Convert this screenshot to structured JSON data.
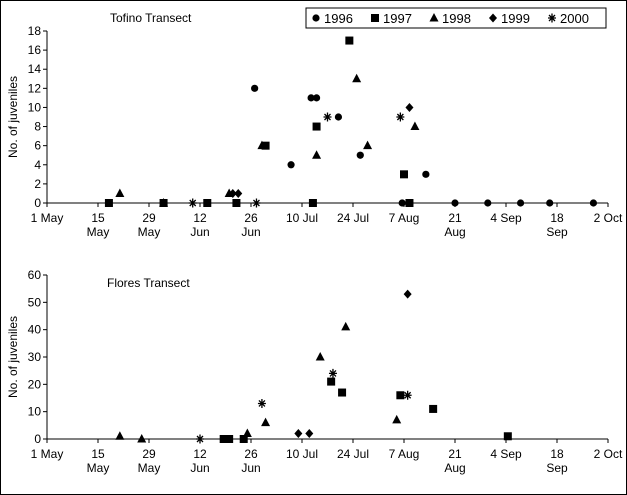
{
  "chart_data": [
    {
      "type": "scatter",
      "title": "Tofino Transect",
      "y_label": "No. of juveniles",
      "xlim": [
        0,
        154
      ],
      "xticks": [
        {
          "value": 0,
          "label": "1 May"
        },
        {
          "value": 14,
          "label": "15\nMay"
        },
        {
          "value": 28,
          "label": "29\nMay"
        },
        {
          "value": 42,
          "label": "12\nJun"
        },
        {
          "value": 56,
          "label": "26\nJun"
        },
        {
          "value": 70,
          "label": "10 Jul"
        },
        {
          "value": 84,
          "label": "24 Jul"
        },
        {
          "value": 98,
          "label": "7 Aug"
        },
        {
          "value": 112,
          "label": "21\nAug"
        },
        {
          "value": 126,
          "label": "4 Sep"
        },
        {
          "value": 140,
          "label": "18\nSep"
        },
        {
          "value": 154,
          "label": "2 Oct"
        }
      ],
      "ylim": [
        0,
        18
      ],
      "yticks": [
        0,
        2,
        4,
        6,
        8,
        10,
        12,
        14,
        16,
        18
      ],
      "legend": "top-right",
      "series": [
        {
          "name": "1996",
          "marker": "circle",
          "color": "#000000",
          "x": [
            57,
            67,
            72.5,
            74,
            80,
            86,
            97.5,
            104,
            112,
            121,
            130,
            138,
            150
          ],
          "values": [
            12,
            4,
            11,
            11,
            9,
            5,
            0,
            3,
            0,
            0,
            0,
            0,
            0
          ]
        },
        {
          "name": "1997",
          "marker": "square",
          "color": "#000000",
          "x": [
            17,
            32,
            44,
            52,
            60,
            73,
            74,
            83,
            98,
            99.5
          ],
          "values": [
            0,
            0,
            0,
            0,
            6,
            0,
            8,
            17,
            3,
            0
          ]
        },
        {
          "name": "1998",
          "marker": "triangle",
          "color": "#000000",
          "x": [
            20,
            32,
            50,
            59,
            74,
            85,
            88,
            101
          ],
          "values": [
            1,
            0,
            1,
            6,
            5,
            13,
            6,
            8
          ]
        },
        {
          "name": "1999",
          "marker": "diamond",
          "color": "#000000",
          "x": [
            51,
            52.5,
            99.5
          ],
          "values": [
            1,
            1,
            10
          ]
        },
        {
          "name": "2000",
          "marker": "asterisk",
          "color": "#000000",
          "x": [
            40,
            57.5,
            77,
            97
          ],
          "values": [
            0,
            0,
            9,
            9
          ]
        }
      ]
    },
    {
      "type": "scatter",
      "title": "Flores Transect",
      "y_label": "No. of juveniles",
      "xlim": [
        0,
        154
      ],
      "xticks": [
        {
          "value": 0,
          "label": "1 May"
        },
        {
          "value": 14,
          "label": "15\nMay"
        },
        {
          "value": 28,
          "label": "29\nMay"
        },
        {
          "value": 42,
          "label": "12\nJun"
        },
        {
          "value": 56,
          "label": "26\nJun"
        },
        {
          "value": 70,
          "label": "10 Jul"
        },
        {
          "value": 84,
          "label": "24 Jul"
        },
        {
          "value": 98,
          "label": "7 Aug"
        },
        {
          "value": 112,
          "label": "21\nAug"
        },
        {
          "value": 126,
          "label": "4 Sep"
        },
        {
          "value": 140,
          "label": "18\nSep"
        },
        {
          "value": 154,
          "label": "2 Oct"
        }
      ],
      "ylim": [
        0,
        60
      ],
      "yticks": [
        0,
        10,
        20,
        30,
        40,
        50,
        60
      ],
      "series": [
        {
          "name": "1997",
          "marker": "square",
          "color": "#000000",
          "x": [
            48.5,
            50,
            54,
            78,
            81,
            97,
            106,
            126.5
          ],
          "values": [
            0,
            0,
            0,
            21,
            17,
            16,
            11,
            1
          ]
        },
        {
          "name": "1998",
          "marker": "triangle",
          "color": "#000000",
          "x": [
            20,
            26,
            55,
            60,
            75,
            82,
            96
          ],
          "values": [
            1,
            0,
            2,
            6,
            30,
            41,
            7
          ]
        },
        {
          "name": "1999",
          "marker": "diamond",
          "color": "#000000",
          "x": [
            69,
            72,
            99
          ],
          "values": [
            2,
            2,
            53
          ]
        },
        {
          "name": "2000",
          "marker": "asterisk",
          "color": "#000000",
          "x": [
            42,
            59,
            78.5,
            99
          ],
          "values": [
            0,
            13,
            24,
            16
          ]
        }
      ]
    }
  ]
}
